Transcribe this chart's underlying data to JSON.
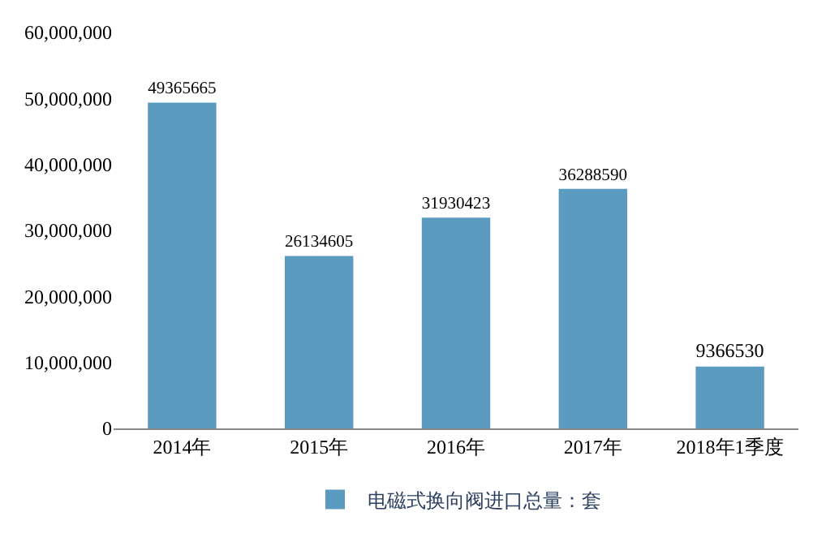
{
  "chart_data": {
    "type": "bar",
    "categories": [
      "2014年",
      "2015年",
      "2016年",
      "2017年",
      "2018年1季度"
    ],
    "series": [
      {
        "name": "电磁式换向阀进口总量：套",
        "color": "#5b9bbf",
        "values": [
          49365665,
          26134605,
          31930423,
          36288590,
          9366530
        ]
      }
    ],
    "ylim": [
      0,
      60000000
    ],
    "yticks": [
      {
        "value": 0,
        "label": "0"
      },
      {
        "value": 10000000,
        "label": "10,000,000"
      },
      {
        "value": 20000000,
        "label": "20,000,000"
      },
      {
        "value": 30000000,
        "label": "30,000,000"
      },
      {
        "value": 40000000,
        "label": "40,000,000"
      },
      {
        "value": 50000000,
        "label": "50,000,000"
      },
      {
        "value": 60000000,
        "label": "60,000,000"
      }
    ],
    "data_labels": true,
    "legend": "bottom"
  }
}
